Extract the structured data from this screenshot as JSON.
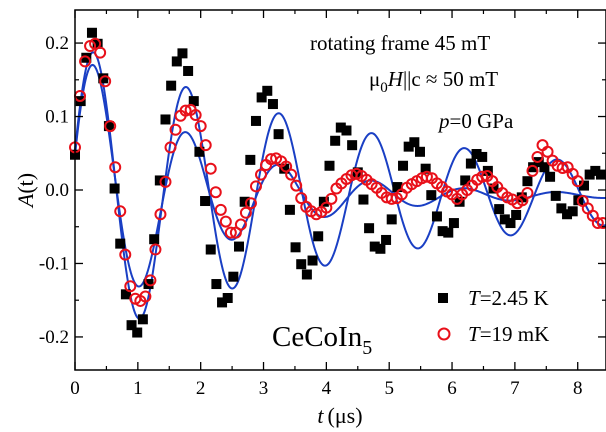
{
  "chart_data": {
    "type": "scatter",
    "xlabel": "t (μs)",
    "ylabel": "A(t)",
    "xlim": [
      0,
      8.45
    ],
    "ylim": [
      -0.245,
      0.245
    ],
    "xticks": [
      0,
      1,
      2,
      3,
      4,
      5,
      6,
      7,
      8
    ],
    "xtick_labels": [
      "0",
      "1",
      "2",
      "3",
      "4",
      "5",
      "6",
      "7",
      "8"
    ],
    "yticks": [
      -0.2,
      -0.1,
      0.0,
      0.1,
      0.2
    ],
    "ytick_labels": [
      "-0.2",
      "-0.1",
      "0.0",
      "0.1",
      "0.2"
    ],
    "grid": false,
    "legend_position": "bottom-right",
    "annotations": {
      "line1": "rotating frame 45 mT",
      "line2_mu": "μ",
      "line2_sub": "0",
      "line2_H": "H",
      "line2_rest": "||c ≈ 50 mT",
      "line3_p": "p",
      "line3_rest": "=0 GPa",
      "compound_main": "CeCoIn",
      "compound_sub": "5"
    },
    "series": [
      {
        "name_T": "T",
        "name": "=2.45 K",
        "marker": "filled-square",
        "color": "#000000",
        "model": {
          "amplitude": 0.205,
          "frequency_mhz": 0.6773,
          "phase": -1.27,
          "damping_per_us": 0.189,
          "offset": -0.0065
        },
        "x": [
          0.0,
          0.09,
          0.18,
          0.27,
          0.36,
          0.45,
          0.54,
          0.63,
          0.72,
          0.81,
          0.9,
          0.99,
          1.08,
          1.17,
          1.26,
          1.35,
          1.44,
          1.53,
          1.62,
          1.71,
          1.8,
          1.89,
          1.98,
          2.07,
          2.16,
          2.25,
          2.34,
          2.43,
          2.52,
          2.61,
          2.7,
          2.79,
          2.88,
          2.97,
          3.06,
          3.15,
          3.24,
          3.33,
          3.42,
          3.51,
          3.6,
          3.69,
          3.78,
          3.87,
          3.96,
          4.05,
          4.14,
          4.23,
          4.32,
          4.41,
          4.5,
          4.59,
          4.68,
          4.77,
          4.86,
          4.95,
          5.04,
          5.13,
          5.22,
          5.31,
          5.4,
          5.49,
          5.58,
          5.67,
          5.76,
          5.85,
          5.94,
          6.03,
          6.12,
          6.21,
          6.3,
          6.39,
          6.48,
          6.57,
          6.66,
          6.75,
          6.84,
          6.93,
          7.02,
          7.11,
          7.2,
          7.29,
          7.38,
          7.47,
          7.56,
          7.65,
          7.74,
          7.83,
          7.92,
          8.01,
          8.1,
          8.19,
          8.28,
          8.37
        ],
        "y": [
          0.048,
          0.121,
          0.18,
          0.214,
          0.199,
          0.152,
          0.087,
          0.002,
          -0.073,
          -0.142,
          -0.184,
          -0.194,
          -0.176,
          -0.128,
          -0.067,
          0.013,
          0.096,
          0.142,
          0.175,
          0.186,
          0.162,
          0.121,
          0.052,
          -0.015,
          -0.081,
          -0.128,
          -0.153,
          -0.147,
          -0.118,
          -0.077,
          -0.016,
          0.041,
          0.094,
          0.126,
          0.135,
          0.117,
          0.076,
          0.029,
          -0.027,
          -0.078,
          -0.101,
          -0.115,
          -0.096,
          -0.063,
          -0.016,
          0.033,
          0.067,
          0.085,
          0.081,
          0.061,
          0.024,
          -0.013,
          -0.052,
          -0.077,
          -0.08,
          -0.068,
          -0.04,
          0.004,
          0.033,
          0.059,
          0.065,
          0.052,
          0.029,
          -0.007,
          -0.036,
          -0.056,
          -0.058,
          -0.045,
          -0.016,
          0.013,
          0.036,
          0.049,
          0.045,
          0.026,
          0.002,
          -0.026,
          -0.04,
          -0.045,
          -0.034,
          -0.01,
          0.012,
          0.031,
          0.038,
          0.031,
          0.018,
          -0.008,
          -0.025,
          -0.033,
          -0.029,
          -0.014,
          0.006,
          0.021,
          0.026,
          0.021
        ]
      },
      {
        "name_T": "T",
        "name": "=19 mK",
        "marker": "open-circle",
        "color": "#e8101a",
        "model": {
          "amplitude": 0.205,
          "frequency_mhz": 0.6773,
          "phase": -1.3,
          "damping_per_us": 0.489,
          "offset": -0.0075
        },
        "x": [
          0.0,
          0.08,
          0.16,
          0.24,
          0.32,
          0.4,
          0.48,
          0.56,
          0.64,
          0.72,
          0.8,
          0.88,
          0.96,
          1.04,
          1.12,
          1.2,
          1.28,
          1.36,
          1.44,
          1.52,
          1.6,
          1.68,
          1.76,
          1.84,
          1.92,
          2.0,
          2.08,
          2.16,
          2.24,
          2.32,
          2.4,
          2.48,
          2.56,
          2.64,
          2.72,
          2.8,
          2.88,
          2.96,
          3.04,
          3.12,
          3.2,
          3.28,
          3.36,
          3.44,
          3.52,
          3.6,
          3.68,
          3.76,
          3.84,
          3.92,
          4.0,
          4.08,
          4.16,
          4.24,
          4.32,
          4.4,
          4.48,
          4.56,
          4.64,
          4.72,
          4.8,
          4.88,
          4.96,
          5.04,
          5.12,
          5.2,
          5.28,
          5.36,
          5.44,
          5.52,
          5.6,
          5.68,
          5.76,
          5.84,
          5.92,
          6.0,
          6.08,
          6.16,
          6.24,
          6.32,
          6.4,
          6.48,
          6.56,
          6.64,
          6.72,
          6.8,
          6.88,
          6.96,
          7.04,
          7.12,
          7.2,
          7.28,
          7.36,
          7.44,
          7.52,
          7.6,
          7.68,
          7.76,
          7.84,
          7.92,
          8.0,
          8.08,
          8.16,
          8.24,
          8.32,
          8.4
        ],
        "y": [
          0.058,
          0.128,
          0.175,
          0.196,
          0.199,
          0.187,
          0.148,
          0.087,
          0.031,
          -0.029,
          -0.088,
          -0.131,
          -0.148,
          -0.151,
          -0.145,
          -0.123,
          -0.081,
          -0.033,
          0.011,
          0.058,
          0.082,
          0.101,
          0.108,
          0.109,
          0.102,
          0.087,
          0.061,
          0.029,
          -0.003,
          -0.027,
          -0.043,
          -0.058,
          -0.058,
          -0.047,
          -0.031,
          -0.018,
          0.005,
          0.021,
          0.034,
          0.042,
          0.043,
          0.039,
          0.032,
          0.021,
          0.006,
          -0.011,
          -0.023,
          -0.029,
          -0.033,
          -0.03,
          -0.024,
          -0.012,
          0.002,
          0.009,
          0.015,
          0.02,
          0.022,
          0.019,
          0.014,
          0.008,
          0.003,
          -0.004,
          -0.01,
          -0.012,
          -0.011,
          -0.006,
          0.003,
          0.008,
          0.012,
          0.016,
          0.018,
          0.016,
          0.009,
          0.004,
          -0.002,
          -0.006,
          -0.012,
          -0.006,
          0.0,
          0.006,
          0.014,
          0.018,
          0.019,
          0.012,
          0.004,
          -0.004,
          -0.01,
          -0.013,
          -0.018,
          -0.014,
          -0.004,
          0.026,
          0.045,
          0.061,
          0.052,
          0.04,
          0.033,
          0.03,
          0.031,
          0.022,
          0.012,
          -0.015,
          -0.025,
          -0.035,
          -0.045,
          -0.045
        ]
      }
    ]
  }
}
